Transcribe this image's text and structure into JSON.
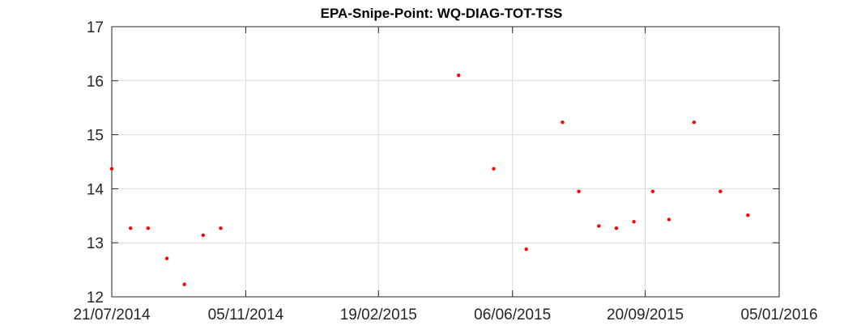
{
  "chart_data": {
    "type": "scatter",
    "title": "EPA-Snipe-Point: WQ-DIAG-TOT-TSS",
    "xlabel": "",
    "ylabel": "",
    "x_ticks": [
      "21/07/2014",
      "05/11/2014",
      "19/02/2015",
      "06/06/2015",
      "20/09/2015",
      "05/01/2016"
    ],
    "x_tick_days": [
      0,
      107,
      213,
      320,
      426,
      533
    ],
    "xlim_days": [
      0,
      533
    ],
    "y_ticks": [
      12,
      13,
      14,
      15,
      16,
      17
    ],
    "ylim": [
      12,
      17
    ],
    "grid": true,
    "marker_color": "#ff0000",
    "series": [
      {
        "name": "WQ-DIAG-TOT-TSS",
        "x_days": [
          0,
          15,
          29,
          44,
          58,
          73,
          87,
          277,
          305,
          331,
          360,
          373,
          389,
          403,
          417,
          432,
          445,
          465,
          486,
          508
        ],
        "values": [
          14.37,
          13.27,
          13.27,
          12.71,
          12.23,
          13.14,
          13.27,
          16.1,
          14.37,
          12.88,
          15.23,
          13.95,
          13.31,
          13.27,
          13.39,
          13.95,
          13.43,
          15.23,
          13.95,
          13.51
        ]
      }
    ]
  }
}
